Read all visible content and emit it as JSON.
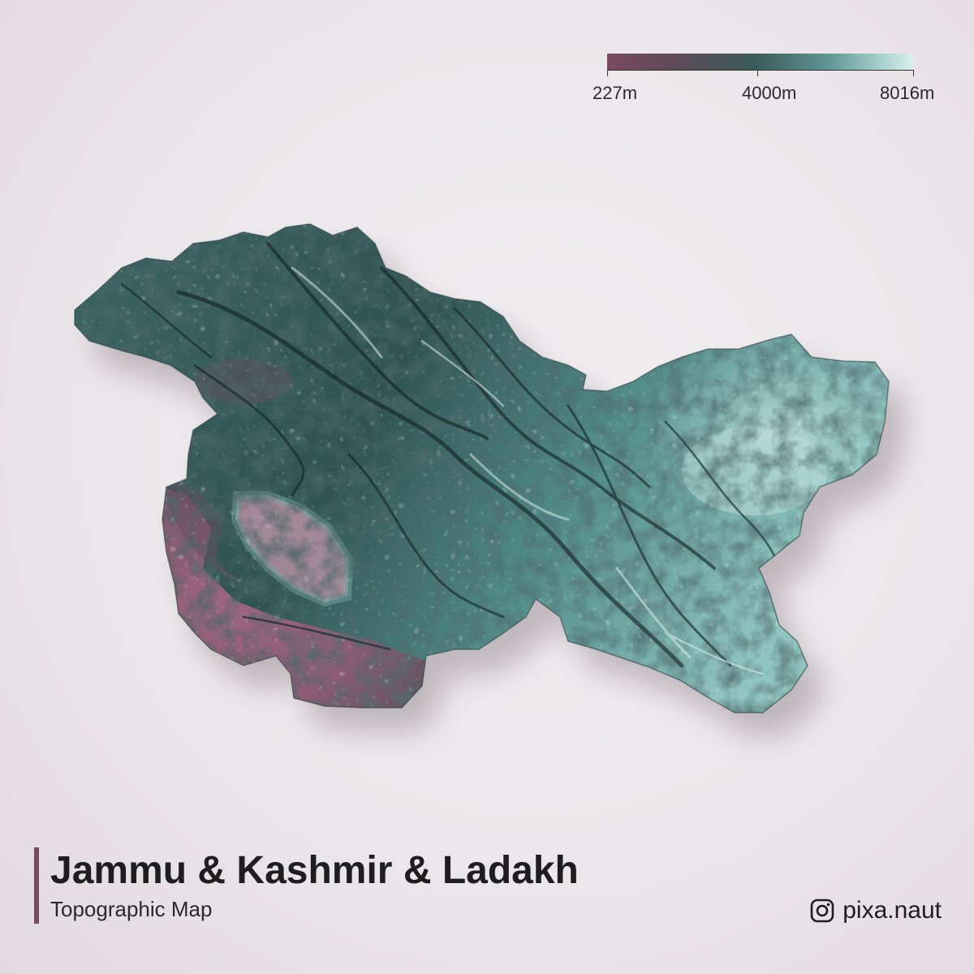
{
  "legend": {
    "min_label": "227m",
    "mid_label": "4000m",
    "max_label": "8016m",
    "min_elevation_m": 227,
    "mid_elevation_m": 4000,
    "max_elevation_m": 8016,
    "colors": {
      "low": "#7a4a60",
      "mid": "#3a5a5a",
      "high": "#dcefee"
    }
  },
  "map": {
    "colors": {
      "lowland": "#a45878",
      "valley": "#c99aac",
      "mountain": "#3c6564",
      "ridge": "#1c2d2e",
      "plateau": "#8fc4c0",
      "snow": "#dff1ef"
    }
  },
  "title_block": {
    "title": "Jammu & Kashmir & Ladakh",
    "subtitle": "Topographic Map",
    "accent_color": "#7a4a60"
  },
  "credit": {
    "icon": "instagram-icon",
    "handle": "pixa.naut"
  }
}
